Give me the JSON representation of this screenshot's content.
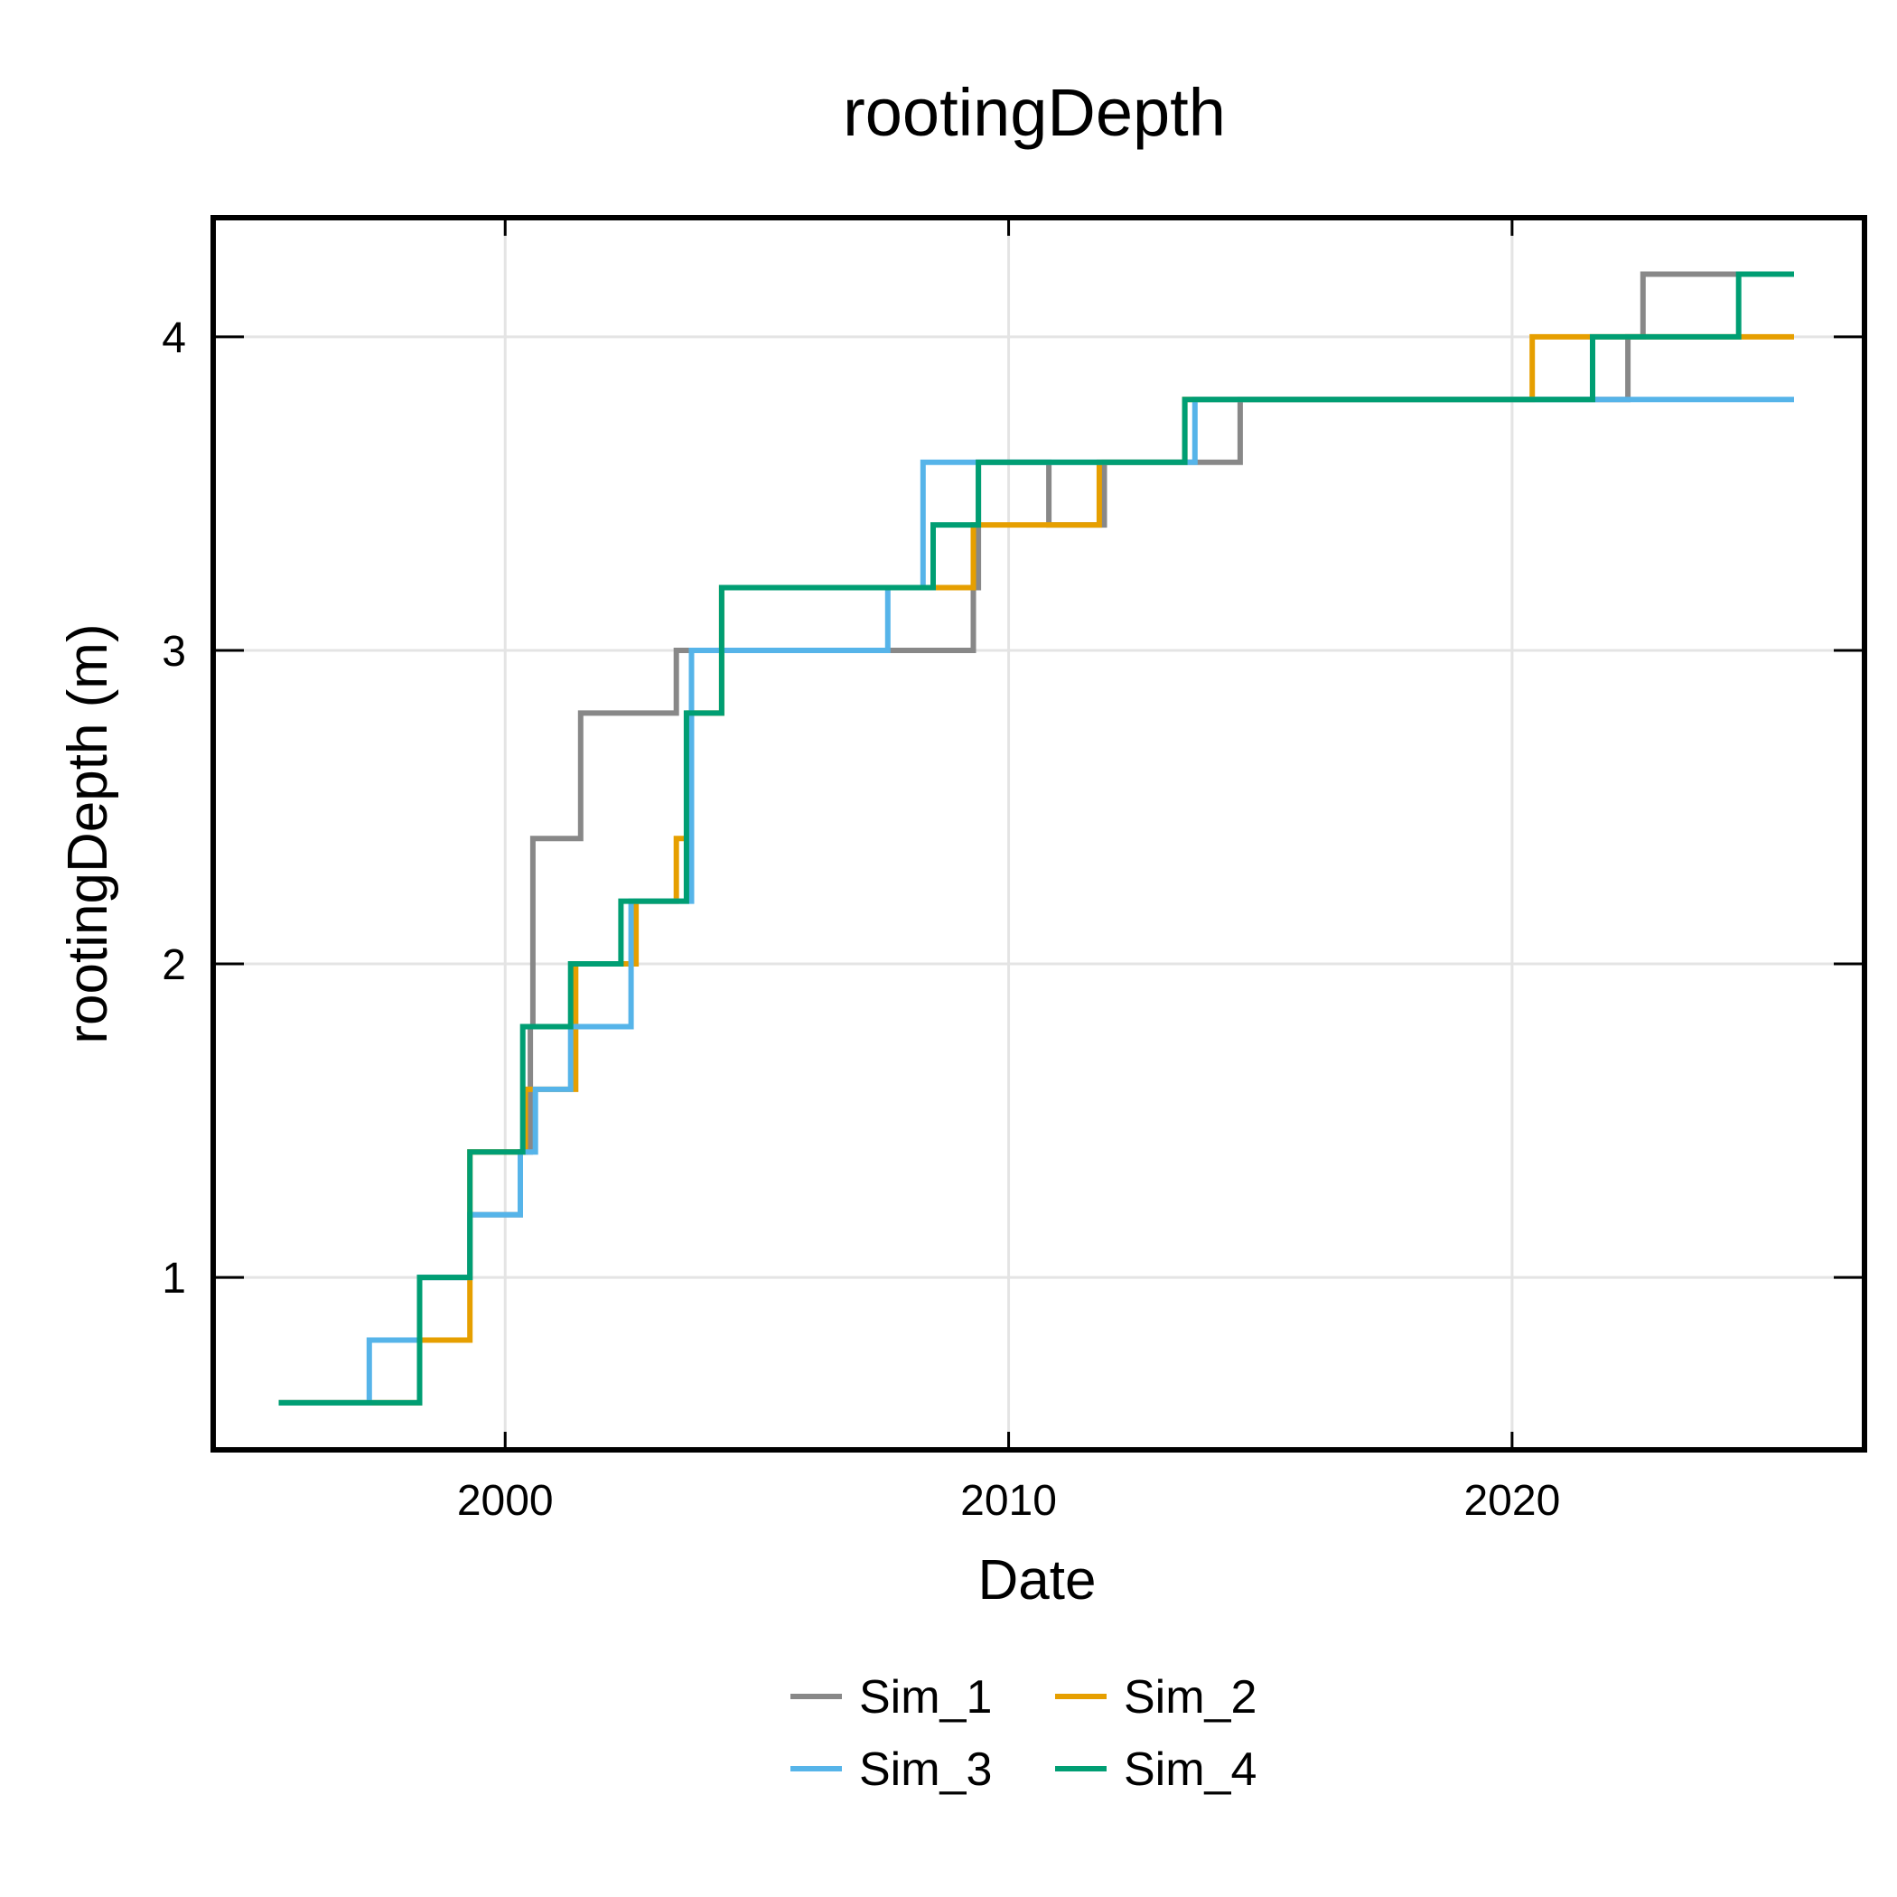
{
  "chart_data": {
    "type": "line",
    "step": true,
    "title": "rootingDepth",
    "xlabel": "Date",
    "ylabel": "rootingDepth (m)",
    "xlim": [
      1994.2,
      2027.0
    ],
    "ylim": [
      0.45,
      4.38
    ],
    "xticks": [
      2000,
      2010,
      2020
    ],
    "xtick_labels": [
      "2000",
      "2010",
      "2020"
    ],
    "yticks": [
      1,
      2,
      3,
      4
    ],
    "ytick_labels": [
      "1",
      "2",
      "3",
      "4"
    ],
    "grid": true,
    "legend_position": "bottom",
    "series": [
      {
        "name": "Sim_1",
        "color": "#888888",
        "x": [
          1995.5,
          1998.3,
          1999.3,
          2000.3,
          2000.5,
          2000.55,
          2001.5,
          2003.4,
          2003.7,
          2007.5,
          2009.3,
          2009.4,
          2010.8,
          2011.9,
          2013.6,
          2014.6,
          2022.3,
          2022.6,
          2025.6
        ],
        "y": [
          0.6,
          1.0,
          1.2,
          1.4,
          1.8,
          2.4,
          2.8,
          3.0,
          3.0,
          3.0,
          3.2,
          3.6,
          3.4,
          3.6,
          3.6,
          3.8,
          4.0,
          4.2,
          4.2
        ]
      },
      {
        "name": "Sim_2",
        "color": "#e69f00",
        "x": [
          1995.5,
          1998.3,
          1999.3,
          2000.4,
          2001.4,
          2002.6,
          2003.4,
          2003.65,
          2004.3,
          2006.4,
          2008.4,
          2009.3,
          2010.8,
          2011.8,
          2013.5,
          2020.4,
          2025.6
        ],
        "y": [
          0.6,
          0.8,
          1.4,
          1.6,
          2.0,
          2.2,
          2.4,
          2.8,
          3.2,
          3.2,
          3.2,
          3.4,
          3.4,
          3.6,
          3.8,
          4.0,
          4.0
        ]
      },
      {
        "name": "Sim_3",
        "color": "#56b4e9",
        "x": [
          1995.5,
          1997.3,
          1998.3,
          1999.3,
          2000.3,
          2000.6,
          2001.3,
          2002.5,
          2003.7,
          2007.6,
          2008.3,
          2009.3,
          2013.7,
          2025.6
        ],
        "y": [
          0.6,
          0.8,
          1.0,
          1.2,
          1.4,
          1.6,
          1.8,
          2.2,
          3.0,
          3.2,
          3.6,
          3.6,
          3.8,
          3.8
        ]
      },
      {
        "name": "Sim_4",
        "color": "#009e73",
        "x": [
          1995.5,
          1998.3,
          1999.3,
          2000.35,
          2001.3,
          2002.3,
          2003.6,
          2004.3,
          2008.5,
          2009.4,
          2013.5,
          2021.6,
          2024.5,
          2025.6
        ],
        "y": [
          0.6,
          1.0,
          1.4,
          1.8,
          2.0,
          2.2,
          2.8,
          3.2,
          3.4,
          3.6,
          3.8,
          4.0,
          4.2,
          4.2
        ]
      }
    ]
  }
}
